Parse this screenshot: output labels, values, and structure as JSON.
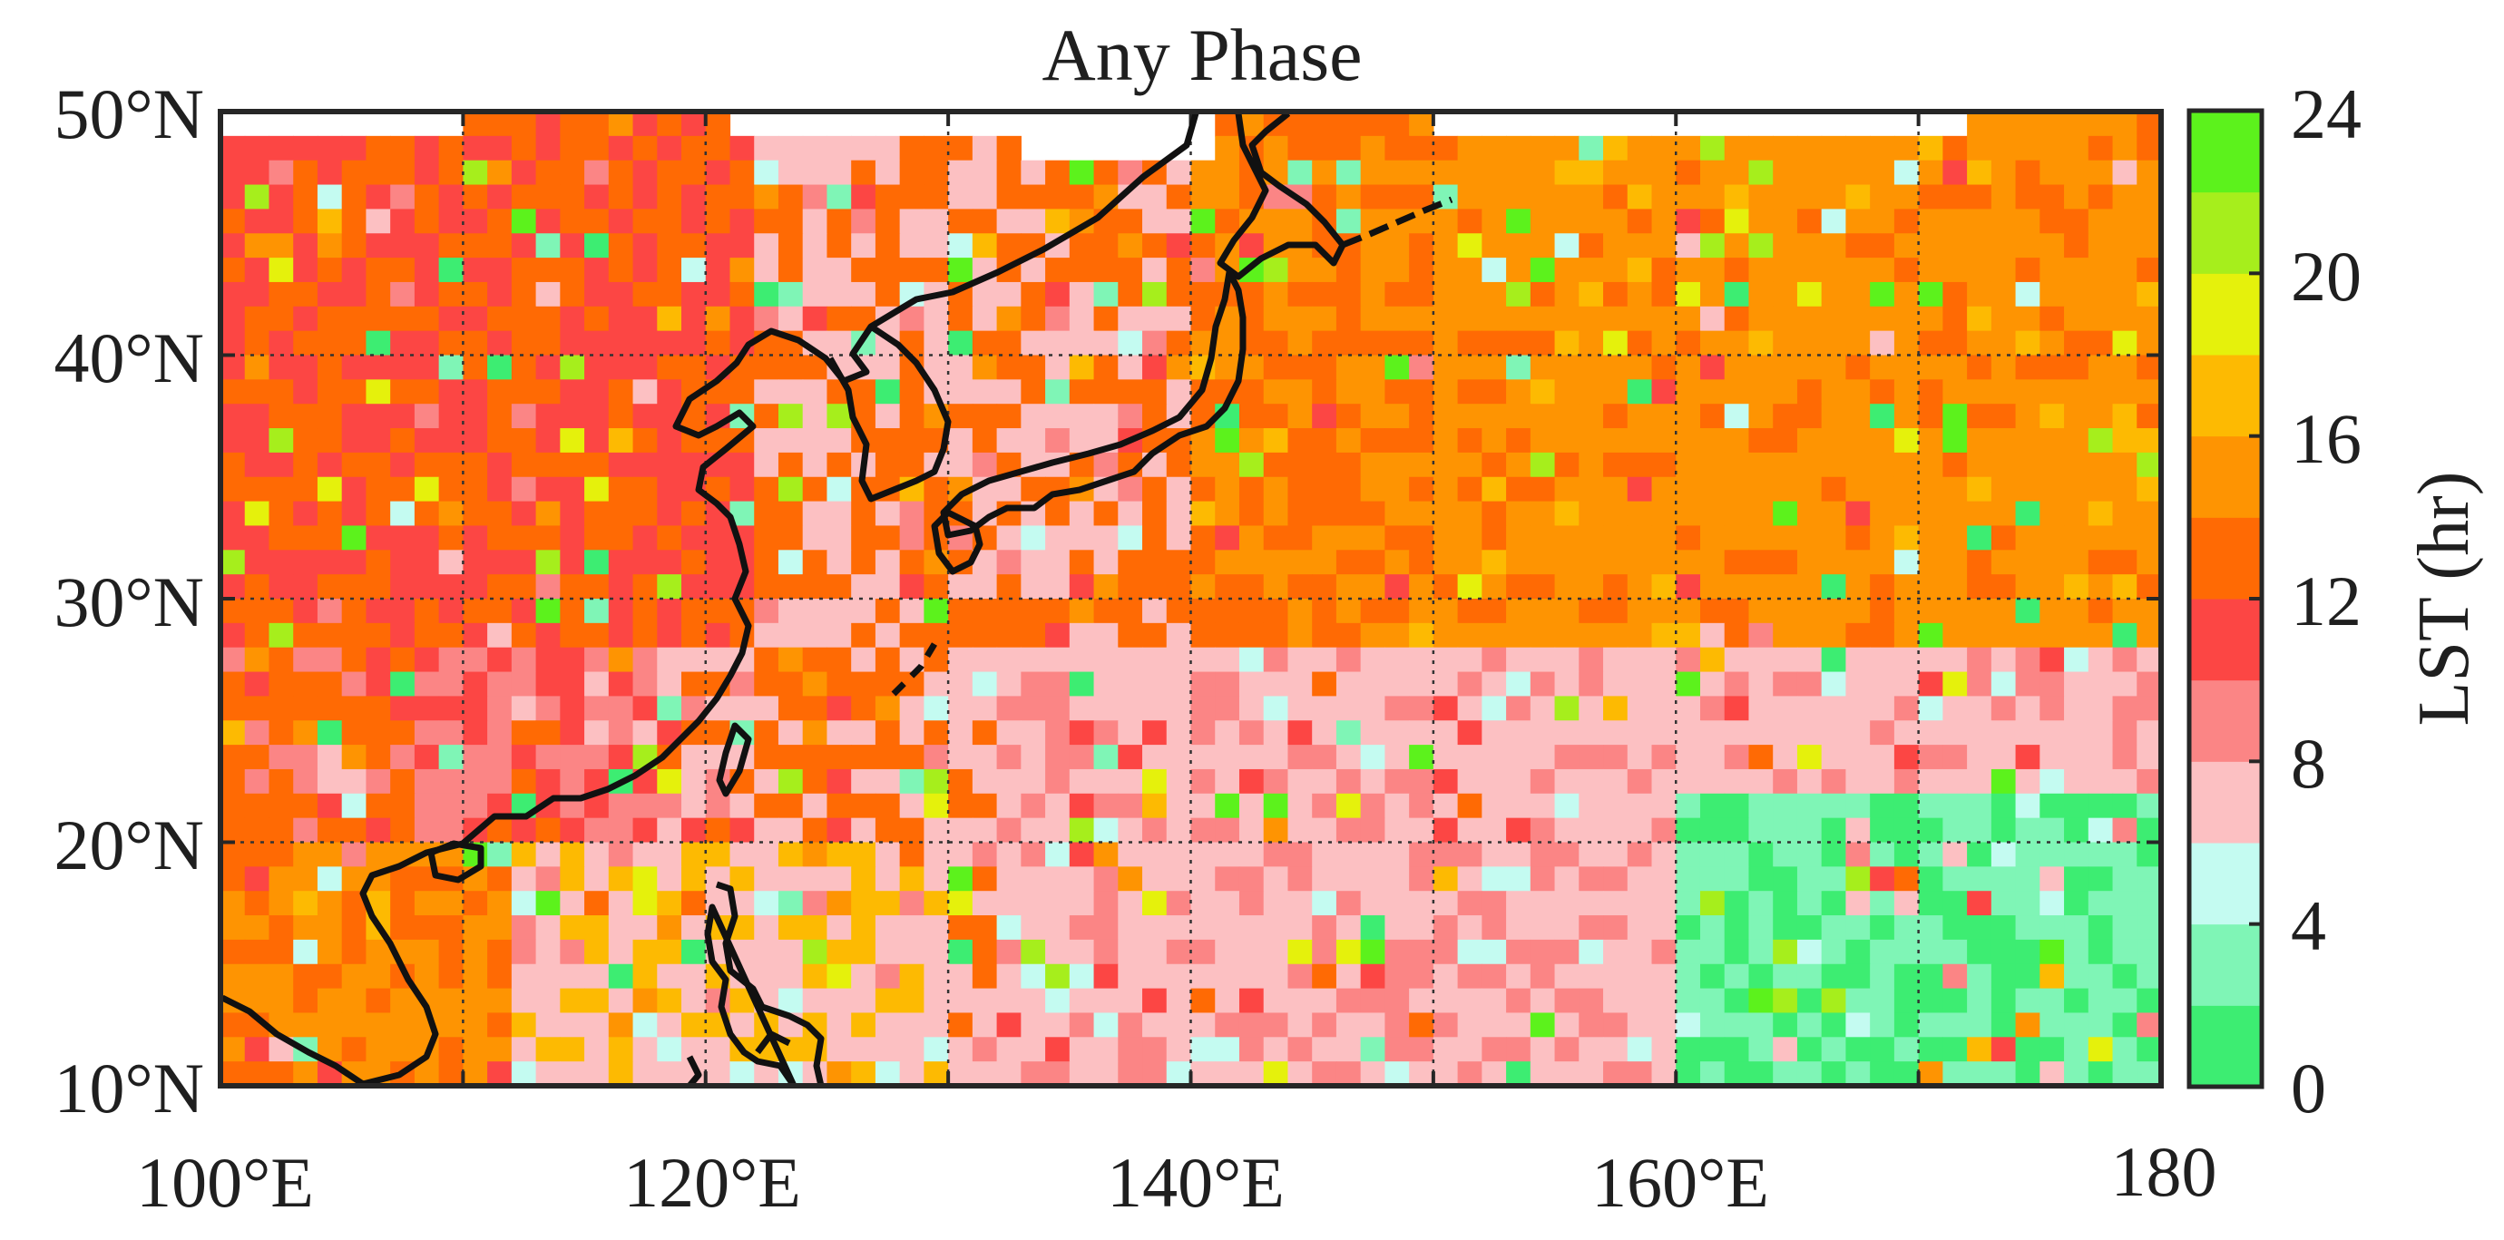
{
  "title": "Any Phase",
  "x_ticks": [
    "100°E",
    "120°E",
    "140°E",
    "160°E",
    "180"
  ],
  "y_ticks": [
    "50°N",
    "40°N",
    "30°N",
    "20°N",
    "10°N"
  ],
  "colorbar": {
    "label": "LST (hr)",
    "ticks": [
      "0",
      "4",
      "8",
      "12",
      "16",
      "20",
      "24"
    ],
    "range": [
      0,
      24
    ],
    "step": 2,
    "colors": [
      "#3ded72",
      "#7ff5b6",
      "#c4fbf1",
      "#fcc0c2",
      "#fb8585",
      "#fc4644",
      "#ff6a04",
      "#fe9402",
      "#fdba02",
      "#e5f10c",
      "#a6ee1c",
      "#5cf21c"
    ]
  },
  "map": {
    "lon_range": [
      100,
      180
    ],
    "lat_range": [
      10,
      50
    ],
    "grid": "dotted",
    "coastlines": true
  },
  "field_legend": [
    "magenta",
    "red",
    "orange",
    "amber",
    "lightgreen",
    "green",
    "cyan",
    "pink"
  ]
}
